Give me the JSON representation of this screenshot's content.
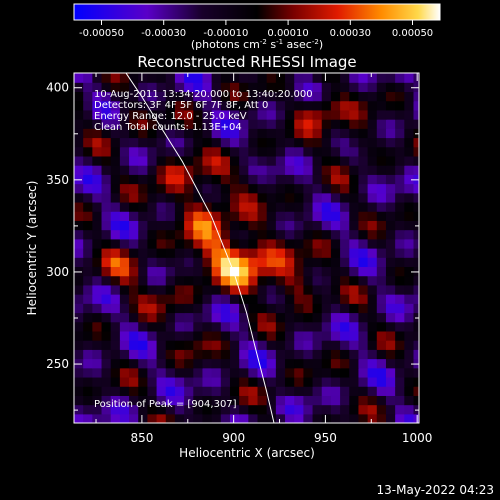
{
  "title": "Reconstructed RHESSI Image",
  "colorbar": {
    "ticks": [
      "-0.00050",
      "-0.00030",
      "-0.00010",
      "0.00010",
      "0.00030",
      "0.00050"
    ],
    "unit_main": "(photons cm",
    "unit_sup1": "-2",
    "unit_mid1": " s",
    "unit_sup2": "-1",
    "unit_mid2": " asec",
    "unit_sup3": "-2",
    "unit_end": ")"
  },
  "annotations": {
    "line1": "10-Aug-2011 13:34:20.000 to 13:40:20.000",
    "line2": "Detectors: 3F 4F 5F 6F 7F 8F, Att 0",
    "line3": "Energy Range: 12.0 - 25.0 keV",
    "line4": "Clean     Total counts: 1.13E+04",
    "peak": "Position of Peak = [904,307]"
  },
  "footer": {
    "timestamp": "13-May-2022 04:23"
  },
  "chart_data": {
    "type": "heatmap",
    "title": "Reconstructed RHESSI Image",
    "xlabel": "Heliocentric X (arcsec)",
    "ylabel": "Heliocentric Y (arcsec)",
    "xlim": [
      813,
      1001
    ],
    "ylim": [
      218,
      408
    ],
    "x_ticks": [
      850,
      900,
      950,
      1000
    ],
    "y_ticks": [
      250,
      300,
      350,
      400
    ],
    "x_tick_labels": [
      "850",
      "900",
      "950",
      "1000"
    ],
    "y_tick_labels": [
      "250",
      "300",
      "350",
      "400"
    ],
    "color_range": [
      -0.0005,
      0.0005
    ],
    "colormap": [
      "#0000ff",
      "#5a00c8",
      "#18002a",
      "#000000",
      "#7a0000",
      "#e01a00",
      "#ff8c00",
      "#ffd84a",
      "#ffffff"
    ],
    "peak": [
      904,
      307
    ],
    "emission_sources": [
      {
        "x": 904,
        "y": 307,
        "amp": 0.00052,
        "sx": 16,
        "sy": 10
      },
      {
        "x": 886,
        "y": 333,
        "amp": 0.00034,
        "sx": 11,
        "sy": 11
      },
      {
        "x": 870,
        "y": 356,
        "amp": 0.00026,
        "sx": 10,
        "sy": 9
      },
      {
        "x": 934,
        "y": 292,
        "amp": 0.00028,
        "sx": 10,
        "sy": 8
      },
      {
        "x": 948,
        "y": 388,
        "amp": 0.00034,
        "sx": 9,
        "sy": 7
      },
      {
        "x": 965,
        "y": 372,
        "amp": 0.00022,
        "sx": 8,
        "sy": 7
      },
      {
        "x": 842,
        "y": 302,
        "amp": 0.00022,
        "sx": 10,
        "sy": 8
      },
      {
        "x": 866,
        "y": 287,
        "amp": 0.00016,
        "sx": 8,
        "sy": 7
      },
      {
        "x": 912,
        "y": 347,
        "amp": 0.00015,
        "sx": 7,
        "sy": 6
      },
      {
        "x": 845,
        "y": 385,
        "amp": 0.00014,
        "sx": 8,
        "sy": 8
      },
      {
        "x": 880,
        "y": 262,
        "amp": 0.00012,
        "sx": 7,
        "sy": 7
      },
      {
        "x": 925,
        "y": 236,
        "amp": 9e-05,
        "sx": 8,
        "sy": 6
      }
    ],
    "limb_curve": {
      "x": [
        840,
        850,
        872,
        888,
        900,
        907,
        912,
        918,
        922
      ],
      "y": [
        410,
        395,
        360,
        330,
        300,
        278,
        258,
        235,
        218
      ]
    }
  }
}
